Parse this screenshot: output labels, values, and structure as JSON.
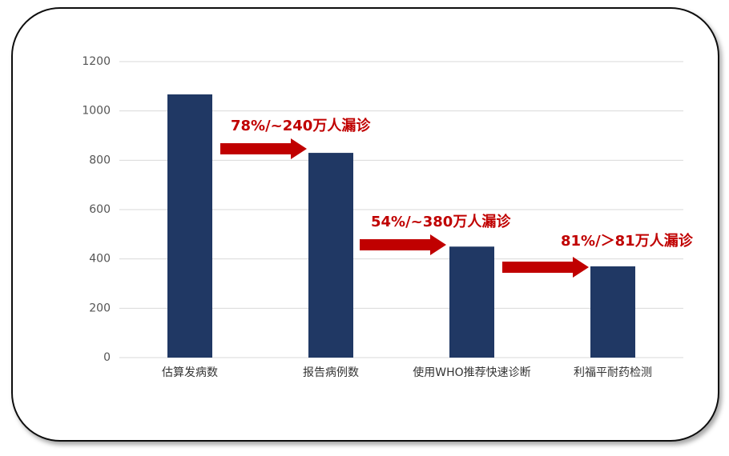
{
  "chart_data": {
    "type": "bar",
    "categories": [
      "估算发病数",
      "报告病例数",
      "使用WHO推荐快速诊断",
      "利福平耐药检测"
    ],
    "values": [
      1067,
      830,
      450,
      370
    ],
    "color": "#203864",
    "ylim": [
      0,
      1200
    ],
    "yticks": [
      0,
      200,
      400,
      600,
      800,
      1000,
      1200
    ],
    "grid": true,
    "annotations": [
      "78%/~240万人漏诊",
      "54%/~380万人漏诊",
      "81%/＞81万人漏诊"
    ],
    "annotation_color": "#c00000"
  }
}
